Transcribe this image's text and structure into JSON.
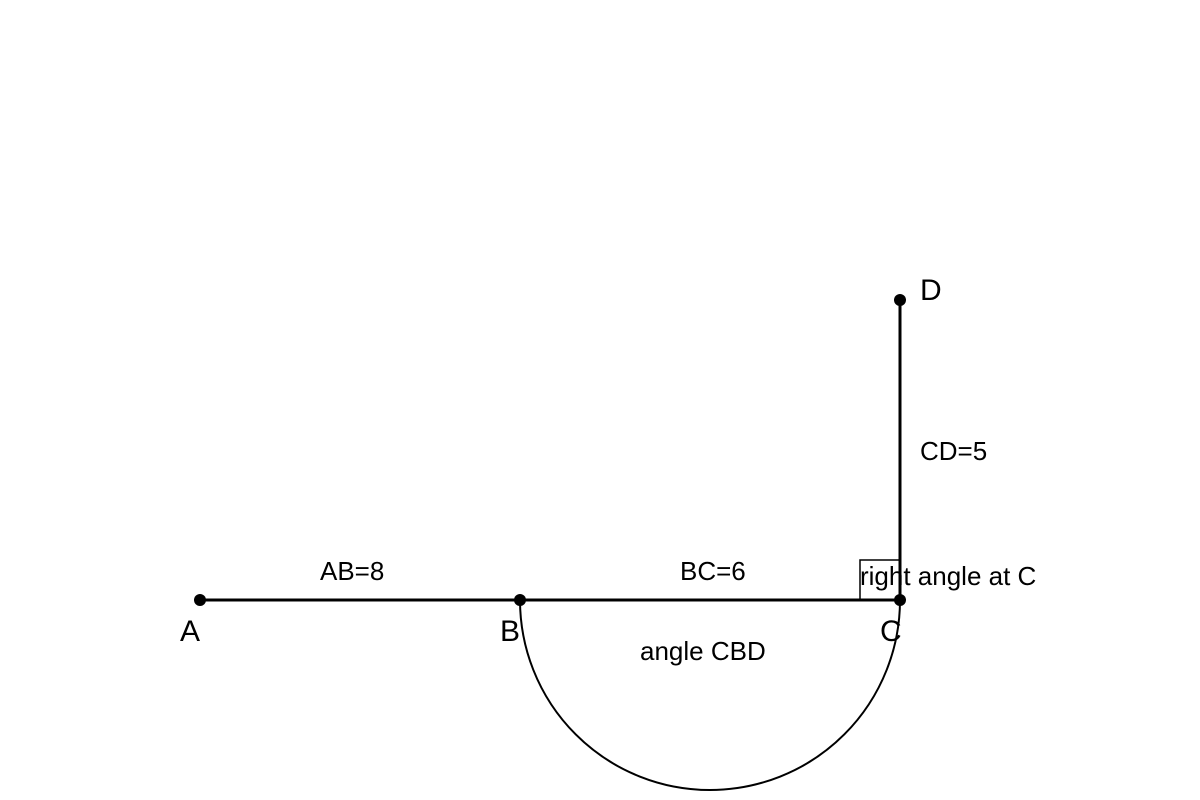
{
  "points": [
    {
      "label": "A"
    },
    {
      "label": "B"
    },
    {
      "label": "C"
    },
    {
      "label": "D"
    }
  ],
  "segments": [
    {
      "label": "AB=8"
    },
    {
      "label": "BC=6"
    },
    {
      "label": "CD=5"
    }
  ],
  "annotations": [
    {
      "label": "right angle at C"
    },
    {
      "label": "angle CBD"
    }
  ]
}
